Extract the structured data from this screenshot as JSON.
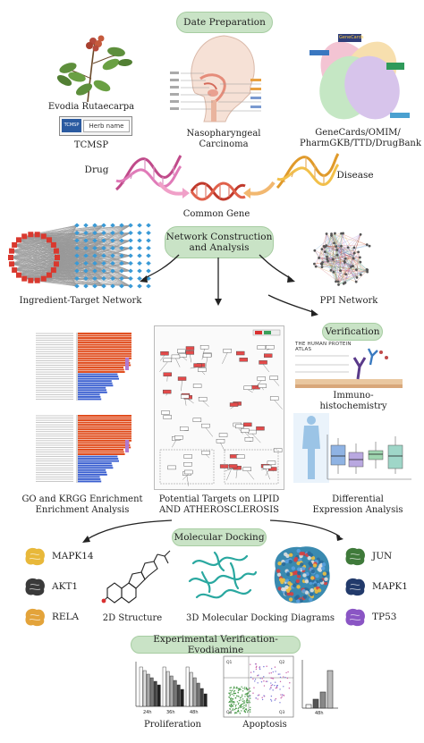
{
  "header": {
    "title": "Date Preparation"
  },
  "prep": {
    "plant_label": "Evodia Rutaecarpa",
    "tcmsp_logo": "TCMSP",
    "herb_placeholder": "Herb name",
    "tcmsp_label": "TCMSP",
    "disease_label_l1": "Nasopharyngeal",
    "disease_label_l2": "Carcinoma",
    "db_label_l1": "GeneCards/OMIM/",
    "db_label_l2": "PharmGKB/TTD/DrugBank",
    "genecards_logo": "GeneCards"
  },
  "flow": {
    "drug_label": "Drug",
    "disease_label": "Disease",
    "common_gene_label": "Common Gene"
  },
  "network": {
    "title_l1": "Network Construction",
    "title_l2": "and Analysis",
    "ingredient_label": "Ingredient-Target Network",
    "ppi_label": "PPI Network"
  },
  "verification": {
    "title": "Verification",
    "hpa_logo": "THE HUMAN PROTEIN ATLAS",
    "immuno_l1": "Immuno-",
    "immuno_l2": "histochemistry",
    "diff_l1": "Differential",
    "diff_l2": "Expression Analysis"
  },
  "enrichment": {
    "label_l1": "GO and KRGG Enrichment",
    "label_l2": "Enrichment Analysis"
  },
  "targets": {
    "label_l1": "Potential Targets on LIPID",
    "label_l2": "AND ATHEROSCLEROSIS"
  },
  "docking": {
    "title": "Molecular Docking",
    "left_proteins": [
      "MAPK14",
      "AKT1",
      "RELA"
    ],
    "right_proteins": [
      "JUN",
      "MAPK1",
      "TP53"
    ],
    "left_colors": [
      "#e8b83a",
      "#3a3a3a",
      "#e3a33a"
    ],
    "right_colors": [
      "#3f7a3a",
      "#223a6b",
      "#8a55c4"
    ],
    "structure_label": "2D Structure",
    "diagrams_label": "3D Molecular Docking Diagrams"
  },
  "experiment": {
    "title": "Experimental Verification-Evodiamine",
    "proliferation_label": "Proliferation",
    "apoptosis_label": "Apoptosis",
    "prolif_ticks": [
      "24h",
      "36h",
      "48h"
    ],
    "apop_x_tick": "48h",
    "apop_quadrants": [
      "Q1",
      "Q2",
      "Q3",
      "Q4"
    ]
  }
}
